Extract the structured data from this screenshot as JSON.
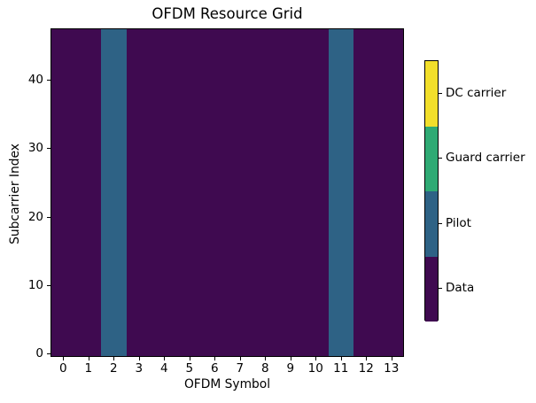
{
  "chart_data": {
    "type": "heatmap",
    "title": "OFDM Resource Grid",
    "xlabel": "OFDM Symbol",
    "ylabel": "Subcarrier Index",
    "n_symbols": 14,
    "n_subcarriers": 48,
    "x_tick_labels": [
      "0",
      "1",
      "2",
      "3",
      "4",
      "5",
      "6",
      "7",
      "8",
      "9",
      "10",
      "11",
      "12",
      "13"
    ],
    "y_tick_values": [
      0,
      10,
      20,
      30,
      40
    ],
    "grid": false,
    "cells": {
      "default_category": "Data",
      "pilot_columns": [
        2,
        11
      ]
    },
    "colorbar": {
      "position": "right",
      "entries_top_to_bottom": [
        {
          "label": "DC carrier",
          "color": "#f2df2b"
        },
        {
          "label": "Guard carrier",
          "color": "#2faa74"
        },
        {
          "label": "Pilot",
          "color": "#2e6285"
        },
        {
          "label": "Data",
          "color": "#3f0a50"
        }
      ]
    }
  }
}
